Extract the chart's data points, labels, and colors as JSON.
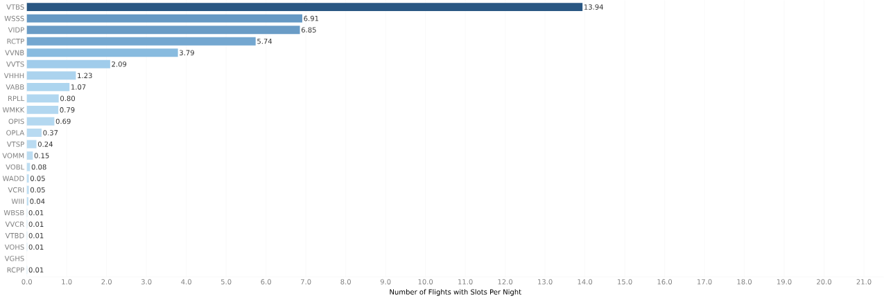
{
  "chart_data": {
    "type": "bar",
    "orientation": "horizontal",
    "xlabel": "Number of Flights with Slots Per Night",
    "categories": [
      "VTBS",
      "WSSS",
      "VIDP",
      "RCTP",
      "VVNB",
      "VVTS",
      "VHHH",
      "VABB",
      "RPLL",
      "WMKK",
      "OPIS",
      "OPLA",
      "VTSP",
      "VOMM",
      "VOBL",
      "WADD",
      "VCRI",
      "WIII",
      "WBSB",
      "VVCR",
      "VTBD",
      "VOHS",
      "VGHS",
      "RCPP"
    ],
    "values": [
      13.94,
      6.91,
      6.85,
      5.74,
      3.79,
      2.09,
      1.23,
      1.07,
      0.8,
      0.79,
      0.69,
      0.37,
      0.24,
      0.15,
      0.08,
      0.05,
      0.05,
      0.04,
      0.01,
      0.01,
      0.01,
      0.01,
      null,
      0.01
    ],
    "value_labels": [
      "13.94",
      "6.91",
      "6.85",
      "5.74",
      "3.79",
      "2.09",
      "1.23",
      "1.07",
      "0.80",
      "0.79",
      "0.69",
      "0.37",
      "0.24",
      "0.15",
      "0.08",
      "0.05",
      "0.05",
      "0.04",
      "0.01",
      "0.01",
      "0.01",
      "0.01",
      null,
      "0.01"
    ],
    "colors": [
      "#2a5783",
      "#6699c4",
      "#6a9cc6",
      "#74a7d0",
      "#88bbdf",
      "#a0cceb",
      "#abd3ee",
      "#add5ef",
      "#b2d7f0",
      "#b2d7f0",
      "#b4d8f0",
      "#b8daf1",
      "#badbf1",
      "#bcdcf1",
      "#bedef2",
      "#bedef2",
      "#bedef2",
      "#bedef2",
      "#c0dff2",
      "#c0dff2",
      "#c0dff2",
      "#c0dff2",
      "#c0dff2",
      "#c0dff2"
    ],
    "xlim": [
      0,
      21.5
    ],
    "xticks": [
      {
        "value": 0,
        "label": "0.0"
      },
      {
        "value": 1,
        "label": "1.0"
      },
      {
        "value": 2,
        "label": "2.0"
      },
      {
        "value": 3,
        "label": "3.0"
      },
      {
        "value": 4,
        "label": "4.0"
      },
      {
        "value": 5,
        "label": "5.0"
      },
      {
        "value": 6,
        "label": "6.0"
      },
      {
        "value": 7,
        "label": "7.0"
      },
      {
        "value": 8,
        "label": "8.0"
      },
      {
        "value": 9,
        "label": "9.0"
      },
      {
        "value": 10,
        "label": "10.0"
      },
      {
        "value": 11,
        "label": "11.0"
      },
      {
        "value": 12,
        "label": "12.0"
      },
      {
        "value": 13,
        "label": "13.0"
      },
      {
        "value": 14,
        "label": "14.0"
      },
      {
        "value": 15,
        "label": "15.0"
      },
      {
        "value": 16,
        "label": "16.0"
      },
      {
        "value": 17,
        "label": "17.0"
      },
      {
        "value": 18,
        "label": "18.0"
      },
      {
        "value": 19,
        "label": "19.0"
      },
      {
        "value": 20,
        "label": "20.0"
      },
      {
        "value": 21,
        "label": "21.0"
      }
    ],
    "grid": "x"
  }
}
